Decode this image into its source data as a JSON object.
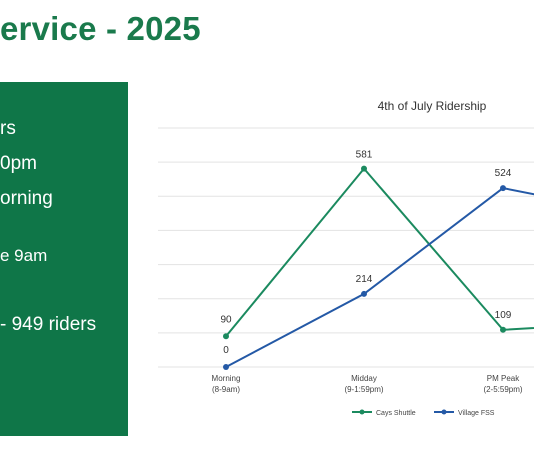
{
  "page": {
    "title": "ervice - 2025",
    "panel_lines": [
      "rs",
      "0pm",
      "orning",
      "e 9am",
      " - 949 riders"
    ]
  },
  "colors": {
    "panel_bg": "#0f7648",
    "title": "#1a7a4c",
    "cays_shuttle": "#1b8a5f",
    "village_fss": "#2459a6",
    "grid": "#e3e3e3"
  },
  "chart_data": {
    "type": "line",
    "title": "4th of July Ridership",
    "categories": [
      [
        "Morning",
        "(8-9am)"
      ],
      [
        "Midday",
        "(9-1:59pm)"
      ],
      [
        "PM Peak",
        "(2-5:59pm)"
      ],
      [
        "",
        ""
      ]
    ],
    "series": [
      {
        "name": "Cays Shuttle",
        "values": [
          90,
          581,
          109,
          130
        ],
        "labels": [
          "90",
          "581",
          "109",
          ""
        ]
      },
      {
        "name": "Village FSS",
        "values": [
          0,
          214,
          524,
          450
        ],
        "labels": [
          "0",
          "214",
          "524",
          ""
        ]
      }
    ],
    "ylim": [
      0,
      700
    ],
    "grid": true,
    "legend": "bottom"
  }
}
